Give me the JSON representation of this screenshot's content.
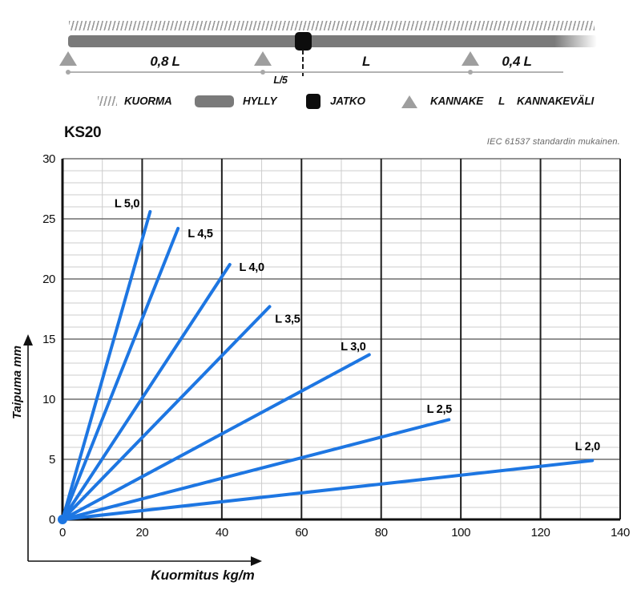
{
  "diagram": {
    "span_left": "0,8 L",
    "span_mid": "L",
    "span_right": "0,4 L",
    "joint_offset": "L/5",
    "legend": [
      {
        "label": "KUORMA"
      },
      {
        "label": "HYLLY"
      },
      {
        "label": "JATKO"
      },
      {
        "label": "KANNAKE"
      },
      {
        "symbol": "L",
        "label": "KANNAKEVÄLI"
      }
    ]
  },
  "chart": {
    "title": "KS20",
    "note": "IEC 61537 standardin mukainen."
  },
  "chart_data": {
    "type": "line",
    "title": "KS20",
    "xlabel": "Kuormitus kg/m",
    "ylabel": "Taipuma mm",
    "xlim": [
      0,
      140
    ],
    "ylim": [
      0,
      30
    ],
    "x_ticks": [
      0,
      20,
      40,
      60,
      80,
      100,
      120,
      140
    ],
    "y_ticks": [
      0,
      5,
      10,
      15,
      20,
      25,
      30
    ],
    "x_minor": 10,
    "x_major": 20,
    "y_minor": 1,
    "y_major": 5,
    "grid": true,
    "line_color": "#1d76e2",
    "series": [
      {
        "name": "L 5,0",
        "points": [
          [
            0,
            0
          ],
          [
            22,
            25.6
          ]
        ],
        "label_at": [
          16.2,
          26.3
        ]
      },
      {
        "name": "L 4,5",
        "points": [
          [
            0,
            0
          ],
          [
            29,
            24.2
          ]
        ],
        "label_at": [
          34.6,
          23.8
        ]
      },
      {
        "name": "L 4,0",
        "points": [
          [
            0,
            0
          ],
          [
            42,
            21.2
          ]
        ],
        "label_at": [
          47.5,
          21.0
        ]
      },
      {
        "name": "L 3,5",
        "points": [
          [
            0,
            0
          ],
          [
            52,
            17.7
          ]
        ],
        "label_at": [
          56.5,
          16.7
        ]
      },
      {
        "name": "L 3,0",
        "points": [
          [
            0,
            0
          ],
          [
            77,
            13.7
          ]
        ],
        "label_at": [
          73.0,
          14.4
        ]
      },
      {
        "name": "L 2,5",
        "points": [
          [
            0,
            0
          ],
          [
            97,
            8.3
          ]
        ],
        "label_at": [
          94.6,
          9.2
        ]
      },
      {
        "name": "L 2,0",
        "points": [
          [
            0,
            0
          ],
          [
            133,
            4.9
          ]
        ],
        "label_at": [
          131.8,
          6.1
        ]
      }
    ]
  }
}
